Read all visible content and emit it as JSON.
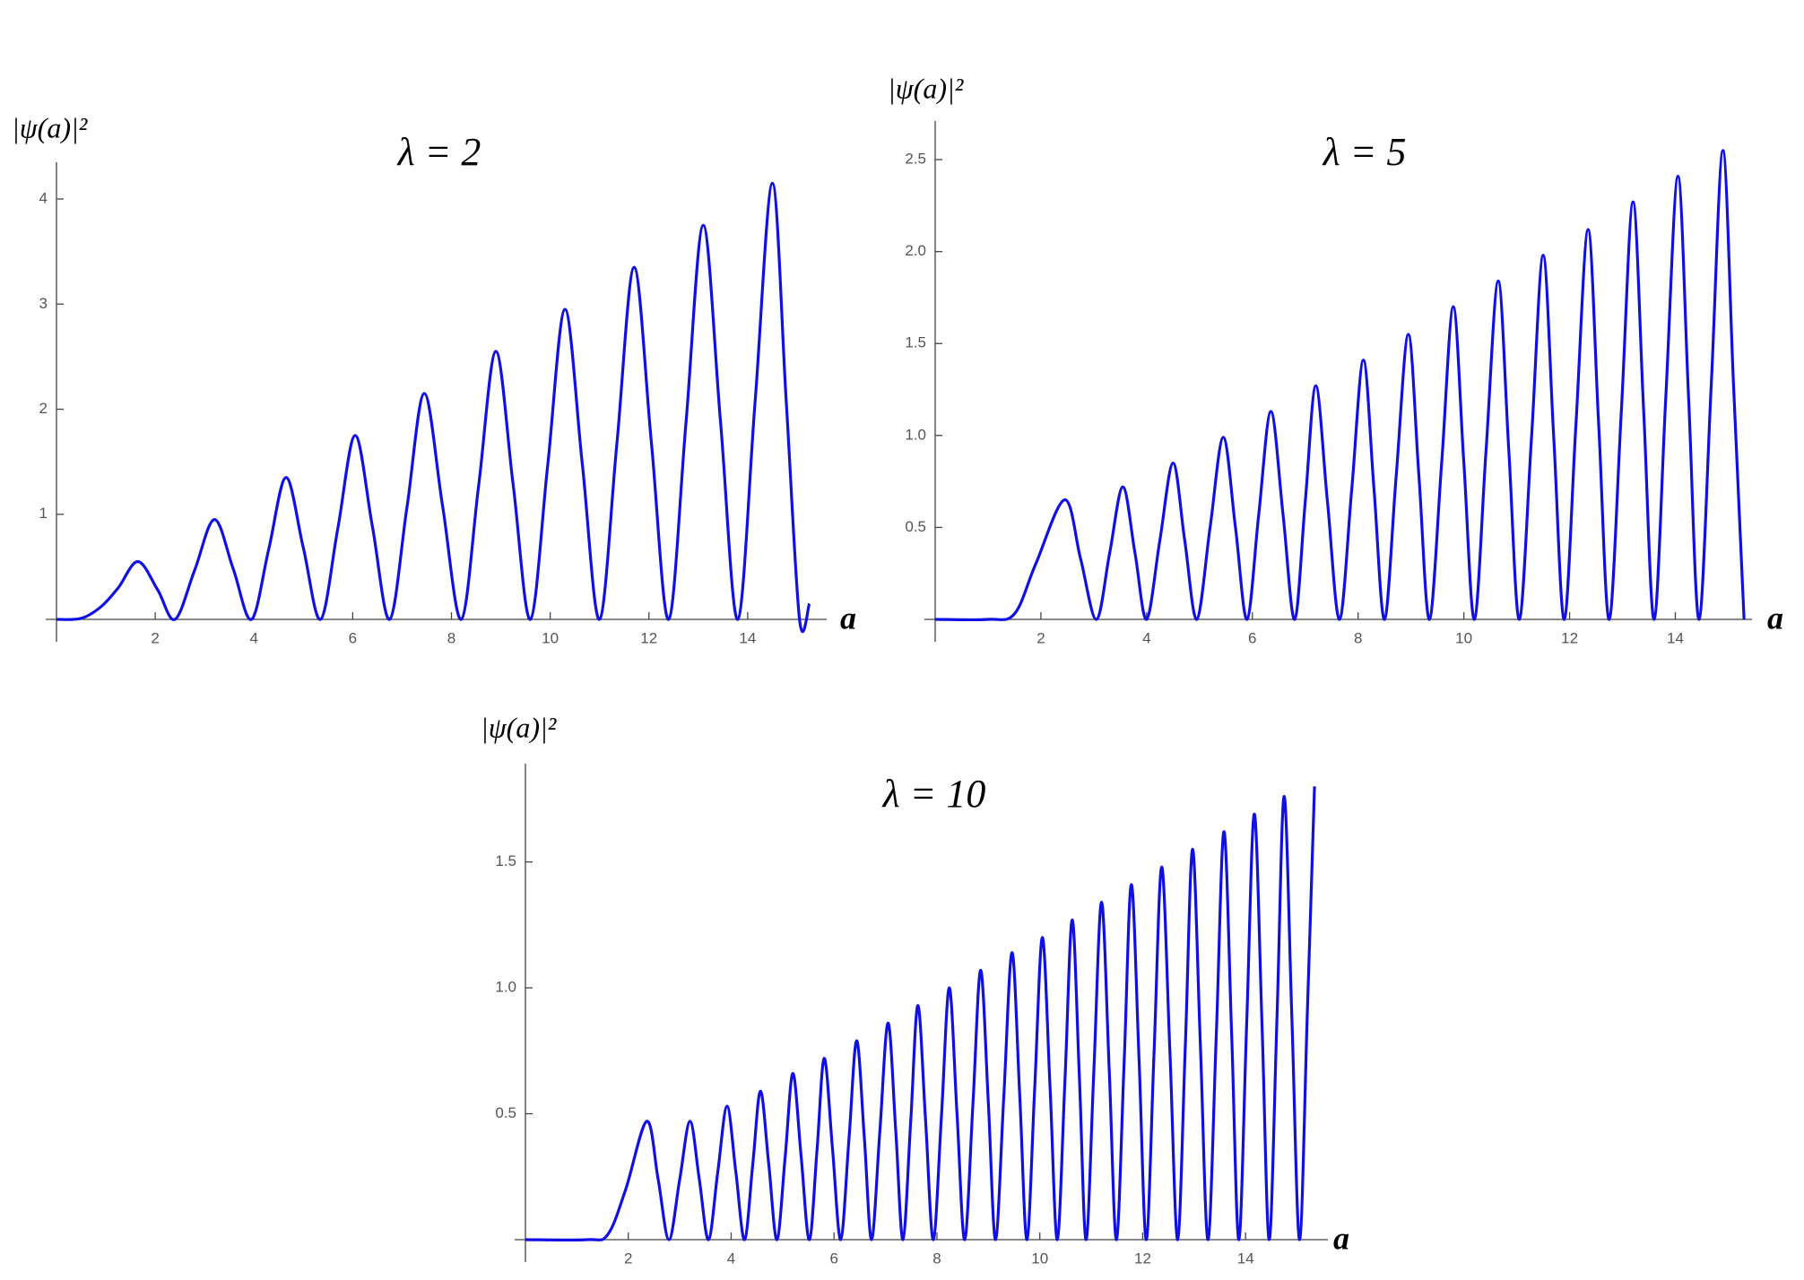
{
  "chart_data": [
    {
      "type": "line",
      "title": "λ = 2",
      "y_label": "|ψ(a)|²",
      "x_label": "a",
      "color": "#1010e6",
      "xlim": [
        0,
        15.6
      ],
      "ylim": [
        0,
        4.35
      ],
      "xticks": [
        2,
        4,
        6,
        8,
        10,
        12,
        14
      ],
      "yticks": [
        1,
        2,
        3,
        4
      ],
      "x": [
        0,
        0.5,
        0.9,
        1.25,
        1.65,
        2.05,
        2.4,
        2.8,
        3.2,
        3.58,
        3.95,
        4.3,
        4.65,
        5.0,
        5.35,
        5.7,
        6.05,
        6.4,
        6.75,
        7.1,
        7.45,
        7.82,
        8.2,
        8.55,
        8.9,
        9.25,
        9.6,
        9.95,
        10.3,
        10.65,
        11.0,
        11.35,
        11.7,
        12.05,
        12.4,
        12.75,
        13.1,
        13.45,
        13.8,
        14.15,
        14.5,
        14.78,
        15.05,
        15.25
      ],
      "values": [
        0,
        0.01,
        0.12,
        0.3,
        0.55,
        0.28,
        0,
        0.47,
        0.95,
        0.48,
        0,
        0.67,
        1.35,
        0.68,
        0,
        0.87,
        1.75,
        0.88,
        0,
        1.07,
        2.15,
        1.08,
        0,
        1.27,
        2.55,
        1.28,
        0,
        1.47,
        2.95,
        1.48,
        0,
        1.67,
        3.35,
        1.68,
        0,
        1.87,
        3.75,
        1.88,
        0,
        2.07,
        4.15,
        2.08,
        0,
        0.15
      ]
    },
    {
      "type": "line",
      "title": "λ = 5",
      "y_label": "|ψ(a)|²",
      "x_label": "a",
      "color": "#1010e6",
      "xlim": [
        0,
        15.45
      ],
      "ylim": [
        0,
        2.71
      ],
      "xticks": [
        2,
        4,
        6,
        8,
        10,
        12,
        14
      ],
      "yticks": [
        0.5,
        {
          "value": 1,
          "label": "1.0"
        },
        1.5,
        {
          "value": 2,
          "label": "2.0"
        },
        2.5
      ],
      "x": [
        0,
        1.0,
        1.5,
        1.9,
        2.45,
        2.75,
        3.05,
        3.3,
        3.55,
        3.78,
        4.0,
        4.25,
        4.5,
        4.72,
        4.95,
        5.2,
        5.45,
        5.68,
        5.9,
        6.12,
        6.35,
        6.58,
        6.8,
        7.0,
        7.2,
        7.42,
        7.65,
        7.88,
        8.1,
        8.3,
        8.5,
        8.72,
        8.95,
        9.15,
        9.35,
        9.58,
        9.8,
        10.0,
        10.2,
        10.42,
        10.65,
        10.85,
        11.05,
        11.28,
        11.5,
        11.7,
        11.9,
        12.12,
        12.35,
        12.55,
        12.75,
        12.98,
        13.2,
        13.4,
        13.6,
        13.82,
        14.05,
        14.25,
        14.45,
        14.68,
        14.9,
        15.1,
        15.3
      ],
      "values": [
        0,
        0,
        0.03,
        0.3,
        0.65,
        0.33,
        0,
        0.36,
        0.72,
        0.36,
        0,
        0.43,
        0.85,
        0.43,
        0,
        0.5,
        0.99,
        0.5,
        0,
        0.57,
        1.13,
        0.57,
        0,
        0.64,
        1.27,
        0.64,
        0,
        0.71,
        1.41,
        0.71,
        0,
        0.78,
        1.55,
        0.78,
        0,
        0.85,
        1.7,
        0.85,
        0,
        0.92,
        1.84,
        0.92,
        0,
        0.99,
        1.98,
        0.99,
        0,
        1.06,
        2.12,
        1.06,
        0,
        1.14,
        2.27,
        1.14,
        0,
        1.21,
        2.41,
        1.21,
        0,
        1.28,
        2.55,
        1.28,
        0
      ]
    },
    {
      "type": "line",
      "title": "λ = 10",
      "y_label": "|ψ(a)|²",
      "x_label": "a",
      "color": "#1010e6",
      "xlim": [
        0,
        15.6
      ],
      "ylim": [
        0,
        1.89
      ],
      "xticks": [
        2,
        4,
        6,
        8,
        10,
        12,
        14
      ],
      "yticks": [
        0.5,
        {
          "value": 1,
          "label": "1.0"
        },
        1.5
      ],
      "x": [
        0,
        1.2,
        1.6,
        1.95,
        2.36,
        2.58,
        2.79,
        3.0,
        3.2,
        3.38,
        3.56,
        3.74,
        3.92,
        4.09,
        4.26,
        4.42,
        4.57,
        4.73,
        4.89,
        5.05,
        5.2,
        5.36,
        5.52,
        5.67,
        5.81,
        5.97,
        6.13,
        6.29,
        6.44,
        6.59,
        6.73,
        6.89,
        7.05,
        7.2,
        7.34,
        7.49,
        7.63,
        7.78,
        7.93,
        8.09,
        8.24,
        8.39,
        8.54,
        8.7,
        8.85,
        9.0,
        9.14,
        9.3,
        9.46,
        9.61,
        9.75,
        9.9,
        10.05,
        10.2,
        10.34,
        10.49,
        10.63,
        10.77,
        10.9,
        11.05,
        11.2,
        11.35,
        11.49,
        11.64,
        11.78,
        11.93,
        12.07,
        12.22,
        12.37,
        12.53,
        12.68,
        12.83,
        12.97,
        13.12,
        13.27,
        13.43,
        13.58,
        13.73,
        13.87,
        14.02,
        14.17,
        14.32,
        14.46,
        14.61,
        14.75,
        14.9,
        15.05,
        15.2,
        15.34
      ],
      "values": [
        0,
        0,
        0.02,
        0.2,
        0.47,
        0.24,
        0,
        0.24,
        0.47,
        0.24,
        0,
        0.27,
        0.53,
        0.27,
        0,
        0.3,
        0.59,
        0.3,
        0,
        0.33,
        0.66,
        0.33,
        0,
        0.36,
        0.72,
        0.36,
        0,
        0.4,
        0.79,
        0.4,
        0,
        0.43,
        0.86,
        0.43,
        0,
        0.47,
        0.93,
        0.47,
        0,
        0.5,
        1.0,
        0.5,
        0,
        0.54,
        1.07,
        0.54,
        0,
        0.57,
        1.14,
        0.57,
        0,
        0.6,
        1.2,
        0.6,
        0,
        0.64,
        1.27,
        0.64,
        0,
        0.67,
        1.34,
        0.67,
        0,
        0.71,
        1.41,
        0.71,
        0,
        0.74,
        1.48,
        0.74,
        0,
        0.78,
        1.55,
        0.78,
        0,
        0.81,
        1.62,
        0.81,
        0,
        0.85,
        1.69,
        0.85,
        0,
        0.88,
        1.76,
        0.88,
        0,
        0.9,
        1.8
      ]
    }
  ]
}
